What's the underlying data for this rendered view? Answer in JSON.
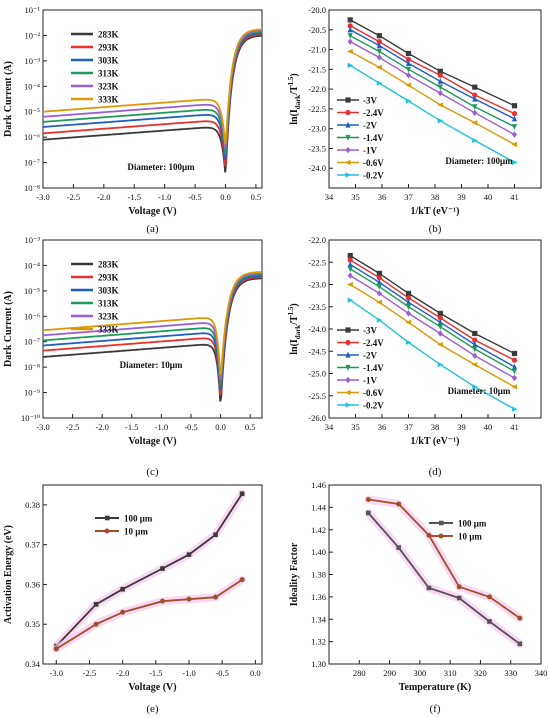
{
  "chart_data": [
    {
      "panel": "(a)",
      "type": "line",
      "xlabel": "Voltage (V)",
      "ylabel": "Dark Current (A)",
      "xlim": [
        -3.0,
        0.6
      ],
      "ylim_log10": [
        -8,
        -1
      ],
      "yscale": "log",
      "xticks": [
        "-3.0",
        "-2.5",
        "-2.0",
        "-1.5",
        "-1.0",
        "-0.5",
        "0.0",
        "0.5"
      ],
      "yticks": [
        "10⁻⁸",
        "10⁻⁷",
        "10⁻⁶",
        "10⁻⁵",
        "10⁻⁴",
        "10⁻³",
        "10⁻²",
        "10⁻¹"
      ],
      "annotation": "Diameter: 100μm",
      "legend_position": "top-left",
      "reverse_log10_at_minus3": [
        -6.1,
        -5.85,
        -5.6,
        -5.4,
        -5.2,
        -5.0
      ],
      "forward_log10_at_0p6": -2.0,
      "series": [
        {
          "name": "283K",
          "color": "#3a3a3a"
        },
        {
          "name": "293K",
          "color": "#e8302e"
        },
        {
          "name": "303K",
          "color": "#1f5fc5"
        },
        {
          "name": "313K",
          "color": "#1f9a5a"
        },
        {
          "name": "323K",
          "color": "#9b5fd0"
        },
        {
          "name": "333K",
          "color": "#d99a0a"
        }
      ]
    },
    {
      "panel": "(b)",
      "type": "line",
      "xlabel": "1/kT (eV⁻¹)",
      "ylabel": "ln(I_dark/T^1.5)",
      "xlim": [
        34,
        42
      ],
      "ylim": [
        -24.5,
        -20.0
      ],
      "xticks": [
        "34",
        "35",
        "36",
        "37",
        "38",
        "39",
        "40",
        "41"
      ],
      "yticks": [
        "-20.0",
        "-20.5",
        "-21.0",
        "-21.5",
        "-22.0",
        "-22.5",
        "-23.0",
        "-23.5",
        "-24.0"
      ],
      "annotation": "Diameter: 100μm",
      "legend_position": "bottom-left",
      "x": [
        34.8,
        35.9,
        37.0,
        38.2,
        39.5,
        41.0
      ],
      "series": [
        {
          "name": "-3V",
          "color": "#3a3a3a",
          "values": [
            -20.25,
            -20.65,
            -21.1,
            -21.55,
            -21.95,
            -22.42
          ]
        },
        {
          "name": "-2.4V",
          "color": "#e8302e",
          "values": [
            -20.4,
            -20.8,
            -21.25,
            -21.65,
            -22.15,
            -22.62
          ]
        },
        {
          "name": "-2V",
          "color": "#1f5fc5",
          "values": [
            -20.5,
            -20.9,
            -21.35,
            -21.8,
            -22.25,
            -22.75
          ]
        },
        {
          "name": "-1.4V",
          "color": "#1f9a5a",
          "values": [
            -20.65,
            -21.05,
            -21.5,
            -21.95,
            -22.45,
            -22.95
          ]
        },
        {
          "name": "-1V",
          "color": "#9b5fd0",
          "values": [
            -20.8,
            -21.2,
            -21.65,
            -22.1,
            -22.6,
            -23.15
          ]
        },
        {
          "name": "-0.6V",
          "color": "#d99a0a",
          "values": [
            -21.05,
            -21.45,
            -21.9,
            -22.4,
            -22.85,
            -23.4
          ]
        },
        {
          "name": "-0.2V",
          "color": "#20c4d8",
          "values": [
            -21.4,
            -21.85,
            -22.3,
            -22.8,
            -23.3,
            -23.85
          ]
        }
      ]
    },
    {
      "panel": "(c)",
      "type": "line",
      "xlabel": "Voltage (V)",
      "ylabel": "Dark Current (A)",
      "xlim": [
        -3.0,
        0.7
      ],
      "ylim_log10": [
        -10,
        -3
      ],
      "yscale": "log",
      "xticks": [
        "-3.0",
        "-2.5",
        "-2.0",
        "-1.5",
        "-1.0",
        "-0.5",
        "0.0",
        "0.5"
      ],
      "yticks": [
        "10⁻¹⁰",
        "10⁻⁹",
        "10⁻⁸",
        "10⁻⁷",
        "10⁻⁶",
        "10⁻⁵",
        "10⁻⁴",
        "10⁻³"
      ],
      "annotation": "Diameter: 10μm",
      "legend_position": "top-left",
      "reverse_log10_at_minus3": [
        -7.6,
        -7.35,
        -7.15,
        -6.95,
        -6.75,
        -6.55
      ],
      "forward_log10_at_0p7": -4.5,
      "series": [
        {
          "name": "283K",
          "color": "#3a3a3a"
        },
        {
          "name": "293K",
          "color": "#e8302e"
        },
        {
          "name": "303K",
          "color": "#1f5fc5"
        },
        {
          "name": "313K",
          "color": "#1f9a5a"
        },
        {
          "name": "323K",
          "color": "#9b5fd0"
        },
        {
          "name": "333K",
          "color": "#d99a0a"
        }
      ]
    },
    {
      "panel": "(d)",
      "type": "line",
      "xlabel": "1/kT (eV⁻¹)",
      "ylabel": "ln(I_dark/T^1.5)",
      "xlim": [
        34,
        42
      ],
      "ylim": [
        -26.0,
        -22.0
      ],
      "xticks": [
        "34",
        "35",
        "36",
        "37",
        "38",
        "39",
        "40",
        "41"
      ],
      "yticks": [
        "-22.0",
        "-22.5",
        "-23.0",
        "-23.5",
        "-24.0",
        "-24.5",
        "-25.0",
        "-25.5",
        "-26.0"
      ],
      "annotation": "Diameter: 10μm",
      "legend_position": "bottom-left",
      "x": [
        34.8,
        35.9,
        37.0,
        38.2,
        39.5,
        41.0
      ],
      "series": [
        {
          "name": "-3V",
          "color": "#3a3a3a",
          "values": [
            -22.35,
            -22.75,
            -23.2,
            -23.65,
            -24.1,
            -24.55
          ]
        },
        {
          "name": "-2.4V",
          "color": "#e8302e",
          "values": [
            -22.45,
            -22.85,
            -23.3,
            -23.75,
            -24.25,
            -24.7
          ]
        },
        {
          "name": "-2V",
          "color": "#1f5fc5",
          "values": [
            -22.55,
            -22.95,
            -23.4,
            -23.85,
            -24.35,
            -24.85
          ]
        },
        {
          "name": "-1.4V",
          "color": "#1f9a5a",
          "values": [
            -22.65,
            -23.05,
            -23.5,
            -23.95,
            -24.45,
            -24.95
          ]
        },
        {
          "name": "-1V",
          "color": "#9b5fd0",
          "values": [
            -22.8,
            -23.2,
            -23.65,
            -24.1,
            -24.6,
            -25.1
          ]
        },
        {
          "name": "-0.6V",
          "color": "#d99a0a",
          "values": [
            -23.0,
            -23.4,
            -23.85,
            -24.35,
            -24.8,
            -25.3
          ]
        },
        {
          "name": "-0.2V",
          "color": "#20c4d8",
          "values": [
            -23.35,
            -23.8,
            -24.3,
            -24.8,
            -25.3,
            -25.8
          ]
        }
      ]
    },
    {
      "panel": "(e)",
      "type": "line",
      "xlabel": "Voltage (V)",
      "ylabel": "Activation Energy (eV)",
      "xlim": [
        -3.2,
        0.1
      ],
      "ylim": [
        0.34,
        0.385
      ],
      "xticks": [
        "-3.0",
        "-2.5",
        "-2.0",
        "-1.5",
        "-1.0",
        "-0.5",
        "0.0"
      ],
      "yticks": [
        "0.34",
        "0.35",
        "0.36",
        "0.37",
        "0.38"
      ],
      "legend_position": "top-left",
      "x": [
        -3.0,
        -2.4,
        -2.0,
        -1.4,
        -1.0,
        -0.6,
        -0.2
      ],
      "series": [
        {
          "name": "100 μm",
          "color": "#3a3a3a",
          "values": [
            0.3445,
            0.355,
            0.3588,
            0.364,
            0.3675,
            0.3725,
            0.3828
          ]
        },
        {
          "name": "10 μm",
          "color": "#a0502a",
          "values": [
            0.3438,
            0.35,
            0.353,
            0.3558,
            0.3563,
            0.3568,
            0.3612
          ]
        }
      ]
    },
    {
      "panel": "(f)",
      "type": "line",
      "xlabel": "Temperature (K)",
      "ylabel": "Ideality Factor",
      "xlim": [
        270,
        340
      ],
      "ylim": [
        1.3,
        1.46
      ],
      "xticks": [
        "280",
        "290",
        "300",
        "310",
        "320",
        "330",
        "340"
      ],
      "yticks": [
        "1.30",
        "1.32",
        "1.34",
        "1.36",
        "1.38",
        "1.40",
        "1.42",
        "1.44",
        "1.46"
      ],
      "legend_position": "top-right",
      "x": [
        283,
        293,
        303,
        313,
        323,
        333
      ],
      "series": [
        {
          "name": "100 μm",
          "color": "#555555",
          "values": [
            1.435,
            1.404,
            1.368,
            1.359,
            1.338,
            1.318
          ]
        },
        {
          "name": "10 μm",
          "color": "#a0502a",
          "values": [
            1.447,
            1.443,
            1.415,
            1.369,
            1.36,
            1.341
          ]
        }
      ]
    }
  ]
}
